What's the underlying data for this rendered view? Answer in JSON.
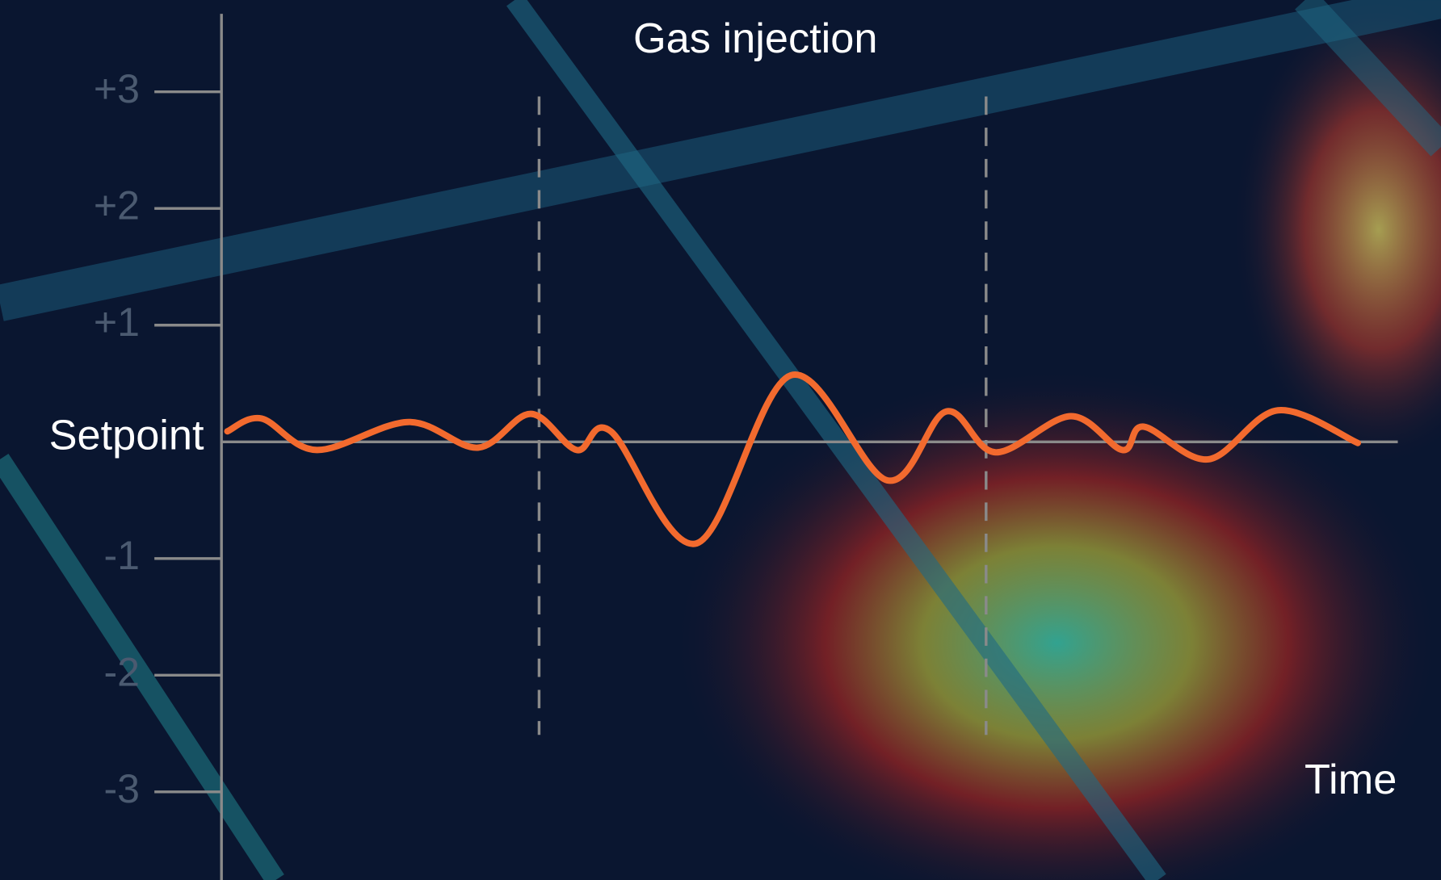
{
  "chart_data": {
    "type": "line",
    "title": "Gas injection",
    "x_label": "Time",
    "x": [
      0.5,
      3.4,
      8.1,
      15.9,
      21.8,
      26.3,
      30.2,
      33.1,
      40.4,
      48.4,
      56.6,
      61.6,
      65.8,
      72.2,
      76.6,
      78.4,
      83.9,
      89.8,
      96.6
    ],
    "series": [
      {
        "color": "#f26a2e",
        "values": [
          0.09,
          0.2,
          -0.07,
          0.17,
          -0.05,
          0.24,
          -0.07,
          0.09,
          -0.87,
          0.57,
          -0.33,
          0.26,
          -0.09,
          0.22,
          -0.07,
          0.13,
          -0.15,
          0.27,
          -0.01
        ]
      }
    ],
    "xlim": [
      0,
      100
    ],
    "ylim": [
      -3.7,
      3.7
    ],
    "yticks": [
      {
        "value": 3,
        "label": "+3"
      },
      {
        "value": 2,
        "label": "+2"
      },
      {
        "value": 1,
        "label": "+1"
      },
      {
        "value": 0,
        "label": "Setpoint"
      },
      -1,
      -2,
      -3
    ],
    "gas_injection_x": [
      27,
      65
    ]
  }
}
